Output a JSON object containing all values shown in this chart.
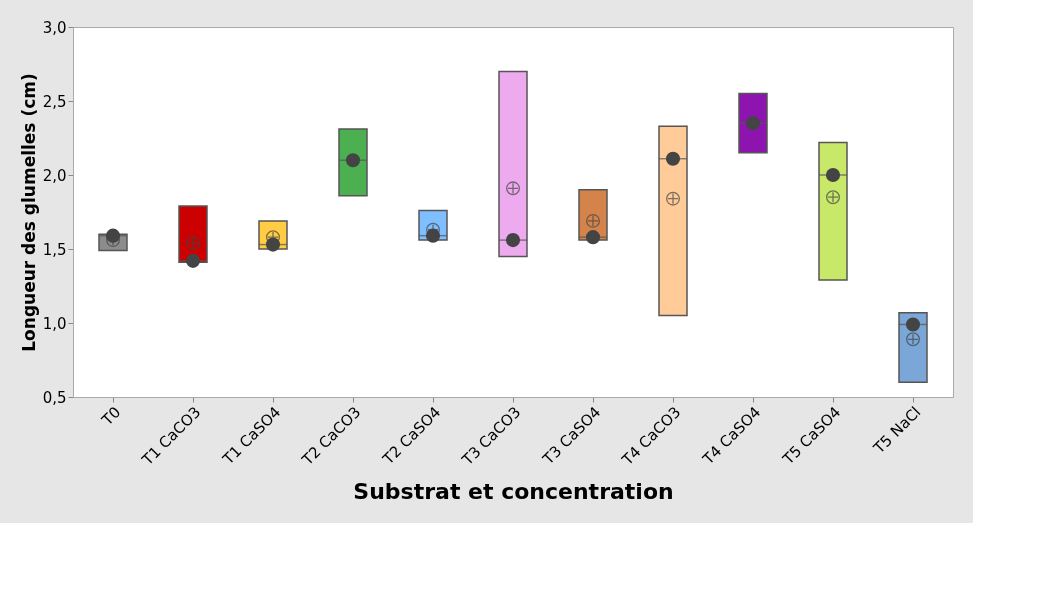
{
  "chart_data": {
    "type": "box",
    "xlabel": "Substrat et concentration",
    "ylabel": "Longueur des glumelles (cm)",
    "categories": [
      "T0",
      "T1 CaCO3",
      "T1 CaSO4",
      "T2 CaCO3",
      "T2 CaSO4",
      "T3 CaCO3",
      "T3 CaSO4",
      "T4 CaCO3",
      "T4 CaSO4",
      "T5 CaSO4",
      "T5 NaCl"
    ],
    "colors": [
      "#8c8c8c",
      "#cc0000",
      "#ffcc44",
      "#4caf50",
      "#7fbfff",
      "#eeaaee",
      "#d4844a",
      "#ffcc99",
      "#8e14b0",
      "#c8e86a",
      "#7ba7d8"
    ],
    "boxes": [
      {
        "low": 1.49,
        "q1": 1.49,
        "median": 1.59,
        "q3": 1.6,
        "high": 1.6,
        "mean": 1.56
      },
      {
        "low": 1.41,
        "q1": 1.41,
        "median": 1.42,
        "q3": 1.79,
        "high": 1.79,
        "mean": 1.54
      },
      {
        "low": 1.5,
        "q1": 1.5,
        "median": 1.53,
        "q3": 1.69,
        "high": 1.69,
        "mean": 1.58
      },
      {
        "low": 1.86,
        "q1": 1.86,
        "median": 2.1,
        "q3": 2.31,
        "high": 2.31
      },
      {
        "low": 1.56,
        "q1": 1.56,
        "median": 1.59,
        "q3": 1.76,
        "high": 1.76,
        "mean": 1.63
      },
      {
        "low": 1.45,
        "q1": 1.45,
        "median": 1.56,
        "q3": 2.7,
        "high": 2.7,
        "mean": 1.91
      },
      {
        "low": 1.56,
        "q1": 1.56,
        "median": 1.58,
        "q3": 1.9,
        "high": 1.9,
        "mean": 1.69
      },
      {
        "low": 1.05,
        "q1": 1.05,
        "median": 2.11,
        "q3": 2.33,
        "high": 2.33,
        "mean": 1.84
      },
      {
        "low": 2.15,
        "q1": 2.15,
        "median": 2.35,
        "q3": 2.55,
        "high": 2.55
      },
      {
        "low": 1.29,
        "q1": 1.29,
        "median": 2.0,
        "q3": 2.22,
        "high": 2.22,
        "mean": 1.85
      },
      {
        "low": 0.6,
        "q1": 0.6,
        "median": 0.99,
        "q3": 1.07,
        "high": 1.07,
        "mean": 0.89
      }
    ],
    "series": [
      {
        "type": "scatter",
        "color": "#444444",
        "marker": "circle",
        "x": [
          "T0",
          "T1 CaCO3",
          "T1 CaSO4",
          "T2 CaCO3",
          "T2 CaSO4",
          "T3 CaCO3",
          "T3 CaSO4",
          "T4 CaCO3",
          "T4 CaSO4",
          "T5 CaSO4",
          "T5 NaCl"
        ],
        "values": [
          1.59,
          1.42,
          1.53,
          2.1,
          1.59,
          1.56,
          1.58,
          2.11,
          2.35,
          2.0,
          0.99
        ]
      }
    ],
    "ylim": [
      0.5,
      3.0
    ],
    "yticks": [
      {
        "value": 0.5,
        "label": "0,5"
      },
      {
        "value": 1.0,
        "label": "1,0"
      },
      {
        "value": 1.5,
        "label": "1,5"
      },
      {
        "value": 2.0,
        "label": "2,0"
      },
      {
        "value": 2.5,
        "label": "2,5"
      },
      {
        "value": 3.0,
        "label": "3,0"
      }
    ],
    "grid": false,
    "legend": false
  }
}
